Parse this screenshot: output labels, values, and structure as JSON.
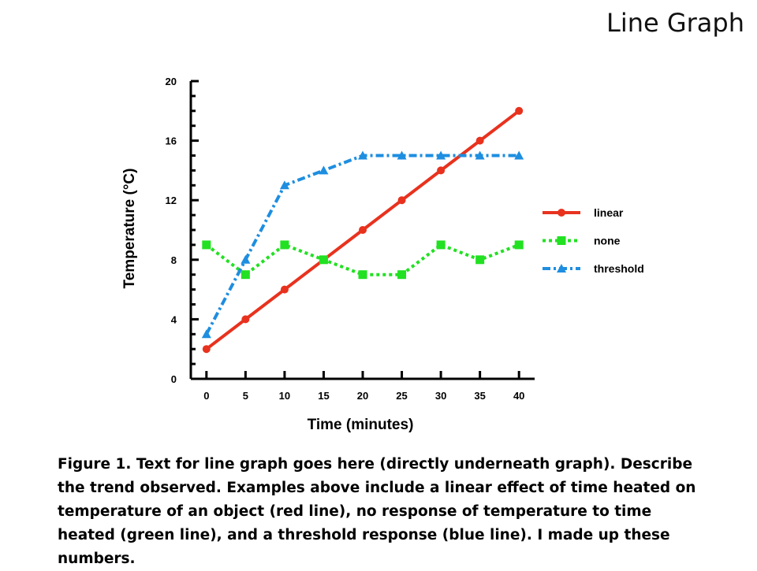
{
  "slide": {
    "title": "Line Graph",
    "caption": "Figure 1.  Text for line graph goes here (directly underneath graph).  Describe the trend observed.  Examples above include a linear effect of time heated on temperature of an object (red line), no response of temperature to time  heated (green line), and a threshold response (blue line).  I made up these numbers."
  },
  "chart_data": {
    "type": "line",
    "title": "",
    "xlabel": "Time (minutes)",
    "ylabel": "Temperature (°C)",
    "x": [
      0,
      5,
      10,
      15,
      20,
      25,
      30,
      35,
      40
    ],
    "xlim": [
      -2,
      42
    ],
    "ylim": [
      0,
      20
    ],
    "xticks": [
      0,
      5,
      10,
      15,
      20,
      25,
      30,
      35,
      40
    ],
    "yticks": [
      0,
      4,
      8,
      12,
      16,
      20
    ],
    "grid": false,
    "legend_position": "right",
    "series": [
      {
        "name": "linear",
        "values": [
          2,
          4,
          6,
          8,
          10,
          12,
          14,
          16,
          18
        ],
        "color": "#e8321e",
        "marker": "circle",
        "line_style": "solid"
      },
      {
        "name": "none",
        "values": [
          9,
          7,
          9,
          8,
          7,
          7,
          9,
          8,
          9
        ],
        "color": "#22e022",
        "marker": "square",
        "line_style": "dotted"
      },
      {
        "name": "threshold",
        "values": [
          3,
          8,
          13,
          14,
          15,
          15,
          15,
          15,
          15
        ],
        "color": "#1e8ee0",
        "marker": "triangle",
        "line_style": "dash-dot"
      }
    ]
  }
}
